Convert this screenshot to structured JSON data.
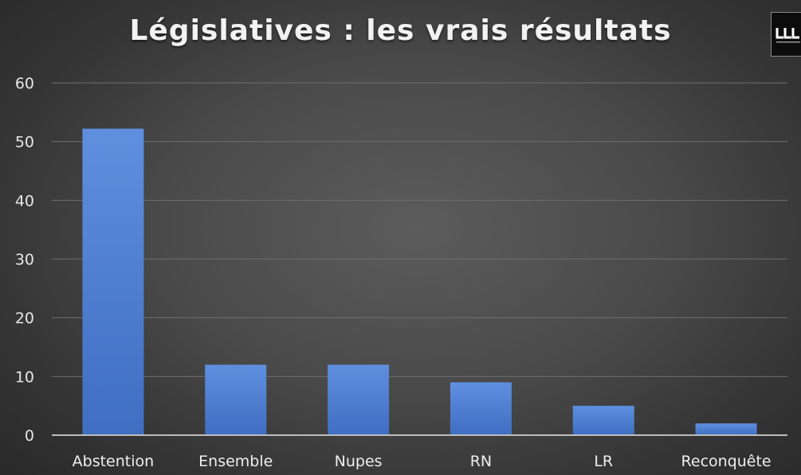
{
  "chart_data": {
    "type": "bar",
    "title": "Législatives : les vrais résultats",
    "categories": [
      "Abstention",
      "Ensemble",
      "Nupes",
      "RN",
      "LR",
      "Reconquête"
    ],
    "values": [
      52.2,
      12,
      12,
      9,
      5,
      2
    ],
    "xlabel": "",
    "ylabel": "",
    "ylim": [
      0,
      60
    ],
    "yticks": [
      "0",
      "10",
      "20",
      "30",
      "40",
      "50",
      "60"
    ],
    "grid": true,
    "legend": "none",
    "bar_color": "#4f7fd4"
  },
  "logo": {
    "text": "LLL"
  }
}
